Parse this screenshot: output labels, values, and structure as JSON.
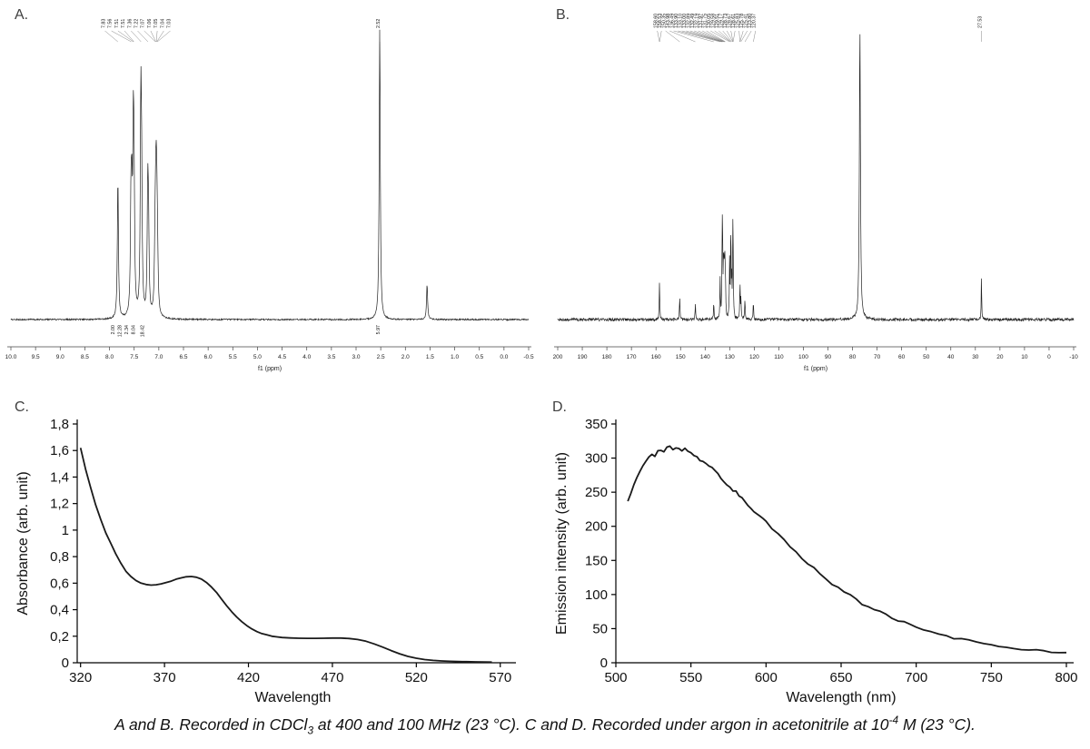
{
  "panels": {
    "a": {
      "label": "A."
    },
    "b": {
      "label": "B."
    },
    "c": {
      "label": "C."
    },
    "d": {
      "label": "D."
    }
  },
  "caption": {
    "parts": [
      {
        "t": "A and B. Recorded in CDCl",
        "s": "n"
      },
      {
        "t": "3",
        "s": "sub"
      },
      {
        "t": " at 400 and 100 MHz (23 °C). C and D. Recorded under argon in acetonitrile at 10",
        "s": "n"
      },
      {
        "t": "-4",
        "s": "sup"
      },
      {
        "t": " M (23 °C).",
        "s": "n"
      }
    ]
  },
  "colors": {
    "trace": "#222222",
    "curve": "#1a1a1a",
    "axis": "#000000",
    "panel_label": "#404040"
  },
  "chart_data": [
    {
      "panel": "A",
      "type": "line",
      "subtype": "1H NMR spectrum",
      "xlabel": "f1 (ppm)",
      "xlim": [
        10.0,
        -0.5
      ],
      "xtick_labels": [
        "10.0",
        "9.5",
        "9.0",
        "8.5",
        "8.0",
        "7.5",
        "7.0",
        "6.5",
        "6.0",
        "5.5",
        "5.0",
        "4.5",
        "4.0",
        "3.5",
        "3.0",
        "2.5",
        "2.0",
        "1.5",
        "1.0",
        "0.5",
        "0.0",
        "-0.5"
      ],
      "peak_label_groups": [
        {
          "labels": [
            [
              "7.83",
              7.83
            ],
            [
              "7.56",
              7.56
            ],
            [
              "7.51",
              7.515
            ],
            [
              "7.51",
              7.505
            ],
            [
              "7.36",
              7.36
            ],
            [
              "7.22",
              7.22
            ],
            [
              "7.07",
              7.07
            ],
            [
              "7.06",
              7.06
            ],
            [
              "7.05",
              7.05
            ],
            [
              "7.04",
              7.04
            ],
            [
              "7.03",
              7.03
            ]
          ]
        },
        {
          "labels": [
            [
              "2.52",
              2.52
            ]
          ]
        }
      ],
      "peaks": [
        [
          7.83,
          0.48
        ],
        [
          7.565,
          0.34
        ],
        [
          7.548,
          0.33
        ],
        [
          7.518,
          0.52
        ],
        [
          7.503,
          0.4
        ],
        [
          7.365,
          0.68
        ],
        [
          7.349,
          0.4
        ],
        [
          7.225,
          0.4
        ],
        [
          7.209,
          0.27
        ],
        [
          7.082,
          0.1
        ],
        [
          7.072,
          0.16
        ],
        [
          7.061,
          0.22
        ],
        [
          7.051,
          0.24
        ],
        [
          7.041,
          0.19
        ],
        [
          7.031,
          0.12
        ],
        [
          7.021,
          0.07
        ],
        [
          2.52,
          1.0
        ],
        [
          1.56,
          0.12
        ]
      ],
      "integrals": [
        [
          "2.00",
          7.9
        ],
        [
          "12.28",
          7.76
        ],
        [
          "2.34",
          7.62
        ],
        [
          "8.04",
          7.49
        ],
        [
          "18.42",
          7.3
        ],
        [
          "5.97",
          2.52
        ]
      ]
    },
    {
      "panel": "B",
      "type": "line",
      "subtype": "13C NMR spectrum",
      "xlabel": "f1 (ppm)",
      "xlim": [
        200,
        -10
      ],
      "xtick_labels": [
        "200",
        "190",
        "180",
        "170",
        "160",
        "150",
        "140",
        "130",
        "120",
        "110",
        "100",
        "90",
        "80",
        "70",
        "60",
        "50",
        "40",
        "30",
        "20",
        "10",
        "0",
        "-10"
      ],
      "peak_label_groups": [
        {
          "labels": [
            [
              "158.60",
              158.6
            ],
            [
              "158.53",
              158.53
            ],
            [
              "150.35",
              150.35
            ],
            [
              "143.98",
              143.98
            ],
            [
              "136.49",
              136.49
            ],
            [
              "133.90",
              133.9
            ],
            [
              "133.10",
              133.1
            ],
            [
              "133.00",
              133.0
            ],
            [
              "132.89",
              132.89
            ],
            [
              "132.49",
              132.49
            ],
            [
              "132.19",
              132.19
            ],
            [
              "131.97",
              131.97
            ],
            [
              "131.75",
              131.75
            ],
            [
              "130.05",
              130.05
            ],
            [
              "129.58",
              129.58
            ],
            [
              "129.51",
              129.51
            ],
            [
              "129.17",
              129.17
            ],
            [
              "128.73",
              128.73
            ],
            [
              "128.67",
              128.67
            ],
            [
              "128.61",
              128.61
            ],
            [
              "125.83",
              125.83
            ],
            [
              "125.78",
              125.78
            ],
            [
              "125.41",
              125.41
            ],
            [
              "123.80",
              123.8
            ],
            [
              "120.37",
              120.37
            ]
          ]
        },
        {
          "labels": [
            [
              "27.53",
              27.53
            ]
          ]
        }
      ],
      "peaks": [
        [
          158.6,
          0.07
        ],
        [
          158.53,
          0.06
        ],
        [
          150.35,
          0.08
        ],
        [
          143.98,
          0.05
        ],
        [
          136.49,
          0.06
        ],
        [
          133.9,
          0.13
        ],
        [
          133.1,
          0.13
        ],
        [
          133.0,
          0.15
        ],
        [
          132.89,
          0.17
        ],
        [
          132.49,
          0.2
        ],
        [
          132.19,
          0.15
        ],
        [
          131.97,
          0.14
        ],
        [
          131.75,
          0.13
        ],
        [
          130.05,
          0.18
        ],
        [
          129.58,
          0.16
        ],
        [
          129.51,
          0.15
        ],
        [
          129.17,
          0.11
        ],
        [
          128.73,
          0.13
        ],
        [
          128.67,
          0.13
        ],
        [
          128.61,
          0.12
        ],
        [
          125.83,
          0.06
        ],
        [
          125.78,
          0.06
        ],
        [
          125.41,
          0.07
        ],
        [
          123.8,
          0.07
        ],
        [
          120.37,
          0.06
        ],
        [
          77.0,
          0.95,
          0.25
        ],
        [
          27.53,
          0.14
        ]
      ]
    },
    {
      "panel": "C",
      "type": "line",
      "subtype": "UV-Vis absorption spectrum",
      "xlabel": "Wavelength",
      "ylabel": "Absorbance (arb. unit)",
      "xlim": [
        318,
        575
      ],
      "ylim": [
        0,
        1.8
      ],
      "xticks": [
        320,
        370,
        420,
        470,
        520,
        570
      ],
      "yticks": [
        0,
        0.2,
        0.4,
        0.6,
        0.8,
        1,
        1.2,
        1.4,
        1.6,
        1.8
      ],
      "ytick_labels": [
        "0",
        "0,2",
        "0,4",
        "0,6",
        "0,8",
        "1",
        "1,2",
        "1,4",
        "1,6",
        "1,8"
      ],
      "points": [
        [
          320,
          1.62
        ],
        [
          323,
          1.46
        ],
        [
          326,
          1.32
        ],
        [
          329,
          1.19
        ],
        [
          332,
          1.08
        ],
        [
          335,
          0.98
        ],
        [
          338,
          0.9
        ],
        [
          341,
          0.82
        ],
        [
          344,
          0.75
        ],
        [
          347,
          0.69
        ],
        [
          350,
          0.65
        ],
        [
          353,
          0.62
        ],
        [
          356,
          0.6
        ],
        [
          359,
          0.59
        ],
        [
          362,
          0.585
        ],
        [
          365,
          0.588
        ],
        [
          368,
          0.595
        ],
        [
          371,
          0.605
        ],
        [
          374,
          0.615
        ],
        [
          377,
          0.63
        ],
        [
          380,
          0.64
        ],
        [
          383,
          0.648
        ],
        [
          386,
          0.65
        ],
        [
          389,
          0.645
        ],
        [
          392,
          0.63
        ],
        [
          395,
          0.605
        ],
        [
          398,
          0.57
        ],
        [
          401,
          0.53
        ],
        [
          404,
          0.48
        ],
        [
          407,
          0.43
        ],
        [
          410,
          0.385
        ],
        [
          413,
          0.345
        ],
        [
          416,
          0.31
        ],
        [
          419,
          0.28
        ],
        [
          422,
          0.255
        ],
        [
          425,
          0.235
        ],
        [
          428,
          0.22
        ],
        [
          431,
          0.21
        ],
        [
          434,
          0.2
        ],
        [
          437,
          0.195
        ],
        [
          440,
          0.19
        ],
        [
          445,
          0.187
        ],
        [
          450,
          0.185
        ],
        [
          455,
          0.184
        ],
        [
          460,
          0.184
        ],
        [
          465,
          0.185
        ],
        [
          470,
          0.186
        ],
        [
          475,
          0.186
        ],
        [
          480,
          0.183
        ],
        [
          485,
          0.175
        ],
        [
          490,
          0.162
        ],
        [
          495,
          0.142
        ],
        [
          500,
          0.118
        ],
        [
          505,
          0.092
        ],
        [
          510,
          0.068
        ],
        [
          515,
          0.048
        ],
        [
          520,
          0.034
        ],
        [
          525,
          0.024
        ],
        [
          530,
          0.018
        ],
        [
          535,
          0.014
        ],
        [
          540,
          0.011
        ],
        [
          545,
          0.009
        ],
        [
          550,
          0.008
        ],
        [
          555,
          0.007
        ],
        [
          560,
          0.006
        ],
        [
          565,
          0.005
        ]
      ]
    },
    {
      "panel": "D",
      "type": "line",
      "subtype": "Emission spectrum",
      "xlabel": "Wavelength (nm)",
      "ylabel": "Emission intensity (arb. unit)",
      "xlim": [
        500,
        800
      ],
      "ylim": [
        0,
        350
      ],
      "xticks": [
        500,
        550,
        600,
        650,
        700,
        750,
        800
      ],
      "yticks": [
        0,
        50,
        100,
        150,
        200,
        250,
        300,
        350
      ],
      "noise": 2,
      "points": [
        [
          508,
          238
        ],
        [
          510,
          250
        ],
        [
          512,
          261
        ],
        [
          514,
          271
        ],
        [
          516,
          281
        ],
        [
          518,
          290
        ],
        [
          520,
          297
        ],
        [
          522,
          303
        ],
        [
          524,
          306
        ],
        [
          526,
          304
        ],
        [
          528,
          309
        ],
        [
          530,
          313
        ],
        [
          532,
          311
        ],
        [
          534,
          315
        ],
        [
          536,
          317
        ],
        [
          538,
          314
        ],
        [
          540,
          316
        ],
        [
          542,
          314
        ],
        [
          544,
          311
        ],
        [
          546,
          313
        ],
        [
          548,
          309
        ],
        [
          550,
          307
        ],
        [
          552,
          305
        ],
        [
          554,
          301
        ],
        [
          556,
          298
        ],
        [
          558,
          295
        ],
        [
          560,
          293
        ],
        [
          562,
          289
        ],
        [
          564,
          286
        ],
        [
          566,
          282
        ],
        [
          568,
          277
        ],
        [
          570,
          272
        ],
        [
          572,
          267
        ],
        [
          574,
          262
        ],
        [
          576,
          257
        ],
        [
          578,
          253
        ],
        [
          580,
          250
        ],
        [
          582,
          246
        ],
        [
          584,
          241
        ],
        [
          586,
          236
        ],
        [
          588,
          231
        ],
        [
          590,
          227
        ],
        [
          592,
          223
        ],
        [
          594,
          219
        ],
        [
          596,
          215
        ],
        [
          598,
          211
        ],
        [
          600,
          207
        ],
        [
          604,
          198
        ],
        [
          608,
          189
        ],
        [
          612,
          180
        ],
        [
          616,
          171
        ],
        [
          620,
          162
        ],
        [
          624,
          154
        ],
        [
          628,
          146
        ],
        [
          632,
          138
        ],
        [
          636,
          130
        ],
        [
          640,
          123
        ],
        [
          644,
          116
        ],
        [
          648,
          110
        ],
        [
          652,
          104
        ],
        [
          656,
          98
        ],
        [
          660,
          92
        ],
        [
          664,
          87
        ],
        [
          668,
          82
        ],
        [
          672,
          78
        ],
        [
          676,
          74
        ],
        [
          680,
          70
        ],
        [
          684,
          66
        ],
        [
          688,
          62
        ],
        [
          692,
          59
        ],
        [
          696,
          56
        ],
        [
          700,
          53
        ],
        [
          705,
          49
        ],
        [
          710,
          45
        ],
        [
          715,
          42
        ],
        [
          720,
          39
        ],
        [
          725,
          37
        ],
        [
          730,
          34
        ],
        [
          735,
          32
        ],
        [
          740,
          30
        ],
        [
          745,
          28
        ],
        [
          750,
          26
        ],
        [
          755,
          25
        ],
        [
          760,
          23
        ],
        [
          765,
          22
        ],
        [
          770,
          21
        ],
        [
          775,
          20
        ],
        [
          780,
          19
        ],
        [
          785,
          18
        ],
        [
          790,
          17
        ],
        [
          795,
          16
        ],
        [
          800,
          15
        ]
      ]
    }
  ]
}
